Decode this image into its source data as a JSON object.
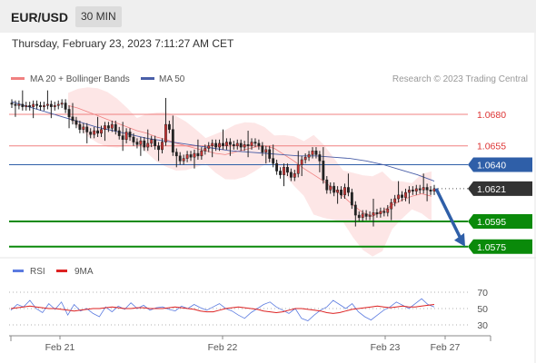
{
  "header": {
    "symbol": "EUR/USD",
    "timeframe": "30 MIN",
    "datetime": "Thursday, February 23, 2023 7:11:27 AM CET"
  },
  "legend": {
    "ma20_label": "MA 20 + Bollinger Bands",
    "ma50_label": "MA 50",
    "copyright": "Research © 2023 Trading Central",
    "rsi_label": "RSI",
    "rsi_ma_label": "9MA"
  },
  "colors": {
    "ma20": "#f08080",
    "ma50": "#4a5fa8",
    "bollinger_fill": "#fde3e3",
    "resistance": "#f08080",
    "pivot": "#2f5fa8",
    "support": "#0a8a0a",
    "current": "#333333",
    "candle": "#222222",
    "candle_up": "#cc3333",
    "arrow": "#2f5fa8",
    "rsi": "#5b7be0",
    "rsi_ma": "#dd2222"
  },
  "chart_data": {
    "type": "candlestick",
    "instrument": "EUR/USD",
    "interval": "30 MIN",
    "ylim": [
      1.0565,
      1.07
    ],
    "levels": [
      {
        "label": "1.0680",
        "value": 1.068,
        "kind": "resistance"
      },
      {
        "label": "1.0655",
        "value": 1.0655,
        "kind": "resistance"
      },
      {
        "label": "1.0640",
        "value": 1.064,
        "kind": "pivot"
      },
      {
        "label": "1.0621",
        "value": 1.0621,
        "kind": "current"
      },
      {
        "label": "1.0595",
        "value": 1.0595,
        "kind": "support"
      },
      {
        "label": "1.0575",
        "value": 1.0575,
        "kind": "support"
      }
    ],
    "close": [
      1.0688,
      1.0687,
      1.0688,
      1.0686,
      1.0687,
      1.0686,
      1.0688,
      1.0687,
      1.0686,
      1.0687,
      1.0688,
      1.0686,
      1.0687,
      1.0688,
      1.0689,
      1.0684,
      1.0678,
      1.0675,
      1.0672,
      1.0668,
      1.067,
      1.0666,
      1.0664,
      1.0667,
      1.0665,
      1.0668,
      1.0671,
      1.0669,
      1.0672,
      1.0667,
      1.0663,
      1.066,
      1.0666,
      1.0662,
      1.0658,
      1.0656,
      1.0659,
      1.0654,
      1.0657,
      1.066,
      1.0655,
      1.0652,
      1.0658,
      1.0672,
      1.0668,
      1.065,
      1.0647,
      1.0643,
      1.0645,
      1.0648,
      1.0646,
      1.0649,
      1.0647,
      1.0651,
      1.0653,
      1.0655,
      1.0657,
      1.0654,
      1.0657,
      1.0655,
      1.0658,
      1.0656,
      1.0655,
      1.0657,
      1.0654,
      1.0656,
      1.0655,
      1.0658,
      1.0657,
      1.0655,
      1.065,
      1.0652,
      1.0645,
      1.0641,
      1.0635,
      1.0632,
      1.0638,
      1.0634,
      1.063,
      1.0633,
      1.064,
      1.0644,
      1.0646,
      1.0648,
      1.0651,
      1.0648,
      1.0643,
      1.0628,
      1.062,
      1.0623,
      1.0618,
      1.062,
      1.0616,
      1.0622,
      1.0618,
      1.0608,
      1.06,
      1.0598,
      1.0601,
      1.0599,
      1.06,
      1.0602,
      1.0601,
      1.0603,
      1.0602,
      1.0605,
      1.061,
      1.0613,
      1.0616,
      1.0614,
      1.0618,
      1.062,
      1.0619,
      1.0621,
      1.062,
      1.0622,
      1.062,
      1.0619,
      1.0621
    ],
    "ma20": [
      1.0687,
      1.0685,
      1.0682,
      1.0679,
      1.0676,
      1.0673,
      1.067,
      1.0667,
      1.0665,
      1.0662,
      1.066,
      1.0657,
      1.0655,
      1.0653,
      1.0651,
      1.0649,
      1.0648,
      1.065,
      1.0652,
      1.0654,
      1.0655,
      1.0653,
      1.0648,
      1.0643,
      1.0637,
      1.0632,
      1.0627,
      1.0621,
      1.0615,
      1.0608,
      1.0602,
      1.0599,
      1.0603,
      1.0608,
      1.0612,
      1.0615,
      1.0617,
      1.0615
    ],
    "ma50": [
      1.069,
      1.0686,
      1.0682,
      1.0678,
      1.0674,
      1.067,
      1.0667,
      1.0664,
      1.0661,
      1.0659,
      1.0657,
      1.0655,
      1.0653,
      1.0651,
      1.065,
      1.0649,
      1.0648,
      1.0647,
      1.0647,
      1.0646,
      1.0645,
      1.0643,
      1.064,
      1.0636,
      1.0632,
      1.0627
    ],
    "projection": {
      "from": 1.0621,
      "to": 1.0575
    },
    "x_ticks": [
      "Feb 21",
      "Feb 22",
      "Feb 23",
      "Feb 27"
    ],
    "rsi": {
      "ylim": [
        20,
        80
      ],
      "ticks": [
        70,
        50,
        30
      ],
      "rsi_values": [
        48,
        55,
        52,
        60,
        50,
        45,
        56,
        49,
        58,
        42,
        55,
        47,
        50,
        44,
        40,
        52,
        46,
        53,
        49,
        57,
        50,
        54,
        48,
        51,
        52,
        49,
        47,
        53,
        50,
        55,
        51,
        48,
        52,
        56,
        50,
        47,
        42,
        38,
        45,
        50,
        55,
        58,
        52,
        48,
        44,
        50,
        38,
        35,
        42,
        48,
        52,
        60,
        55,
        50,
        56,
        46,
        40,
        36,
        42,
        48,
        52,
        58,
        54,
        50,
        56,
        62,
        55,
        52
      ],
      "ma_values": [
        50,
        51,
        52,
        53,
        52,
        51,
        50,
        50,
        49,
        48,
        47,
        48,
        49,
        50,
        50,
        51,
        52,
        51,
        50,
        50,
        51,
        51,
        50,
        50,
        50,
        51,
        52,
        51,
        50,
        49,
        47,
        46,
        46,
        48,
        50,
        51,
        52,
        51,
        50,
        49,
        47,
        46,
        45,
        46,
        48,
        50,
        50,
        49,
        48,
        47,
        45,
        44,
        45,
        47,
        49,
        50,
        51,
        52,
        53,
        52,
        51,
        52,
        53,
        52,
        52,
        53,
        54,
        55
      ]
    }
  }
}
